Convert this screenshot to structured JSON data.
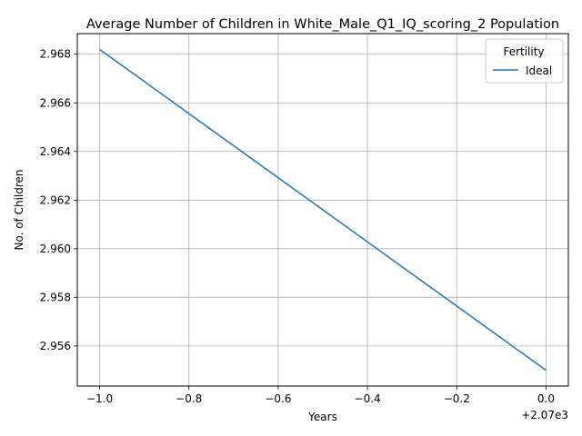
{
  "chart_data": {
    "type": "line",
    "title": "Average Number of Children in White_Male_Q1_IQ_scoring_2 Population",
    "xlabel": "Years",
    "ylabel": "No. of Children",
    "x_offset_label": "+2.07e3",
    "xlim": [
      -1.05,
      0.05
    ],
    "ylim": [
      2.95435,
      2.96885
    ],
    "x_ticks": [
      -1.0,
      -0.8,
      -0.6,
      -0.4,
      -0.2,
      0.0
    ],
    "x_tick_labels": [
      "−1.0",
      "−0.8",
      "−0.6",
      "−0.4",
      "−0.2",
      "0.0"
    ],
    "y_ticks": [
      2.956,
      2.958,
      2.96,
      2.962,
      2.964,
      2.966,
      2.968
    ],
    "y_tick_labels": [
      "2.956",
      "2.958",
      "2.960",
      "2.962",
      "2.964",
      "2.966",
      "2.968"
    ],
    "grid": true,
    "legend": {
      "title": "Fertility",
      "position": "top-right"
    },
    "series": [
      {
        "name": "Ideal",
        "color": "#1f77b4",
        "x": [
          -1.0,
          0.0
        ],
        "y": [
          2.9682,
          2.955
        ]
      }
    ]
  }
}
